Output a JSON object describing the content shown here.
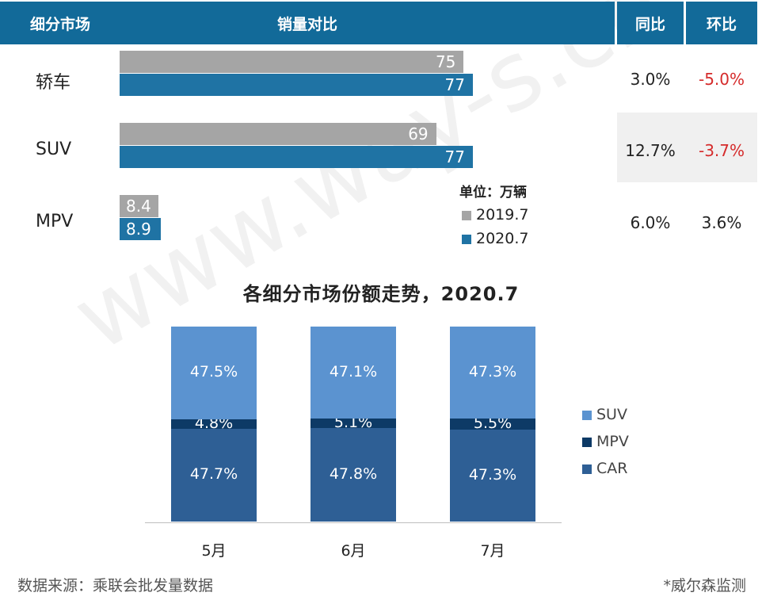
{
  "header": {
    "segment_col": "细分市场",
    "compare_col": "销量对比",
    "yoy_col": "同比",
    "mom_col": "环比"
  },
  "chart_data": [
    {
      "type": "bar",
      "orientation": "horizontal",
      "categories": [
        "轿车",
        "SUV",
        "MPV"
      ],
      "series": [
        {
          "name": "2019.7",
          "values": [
            75,
            69,
            8.4
          ],
          "labels": [
            "75",
            "69",
            "8.4"
          ],
          "color": "#a5a5a5"
        },
        {
          "name": "2020.7",
          "values": [
            77,
            77,
            8.9
          ],
          "labels": [
            "77",
            "77",
            "8.9"
          ],
          "color": "#1f73a4"
        }
      ],
      "unit": "单位：万辆",
      "yoy": [
        "3.0%",
        "12.7%",
        "6.0%"
      ],
      "mom": [
        "-5.0%",
        "-3.7%",
        "3.6%"
      ],
      "negative_color": "#d52b2b",
      "legend": "right",
      "grid": false
    },
    {
      "type": "bar",
      "stacked": true,
      "title": "各细分市场份额走势，2020.7",
      "categories": [
        "5月",
        "6月",
        "7月"
      ],
      "series": [
        {
          "name": "CAR",
          "values": [
            47.7,
            47.8,
            47.3
          ],
          "labels": [
            "47.7%",
            "47.8%",
            "47.3%"
          ],
          "color": "#2e5f95"
        },
        {
          "name": "MPV",
          "values": [
            4.8,
            5.1,
            5.5
          ],
          "labels": [
            "4.8%",
            "5.1%",
            "5.5%"
          ],
          "color": "#0d3a66"
        },
        {
          "name": "SUV",
          "values": [
            47.5,
            47.1,
            47.3
          ],
          "labels": [
            "47.5%",
            "47.1%",
            "47.3%"
          ],
          "color": "#5b93d0"
        }
      ],
      "legend_order": [
        "SUV",
        "MPV",
        "CAR"
      ],
      "legend": "right",
      "grid": false
    }
  ],
  "footer": {
    "source": "数据来源：乘联会批发量数据",
    "note": "*威尔森监测"
  },
  "watermark": "www.way-s.cn"
}
